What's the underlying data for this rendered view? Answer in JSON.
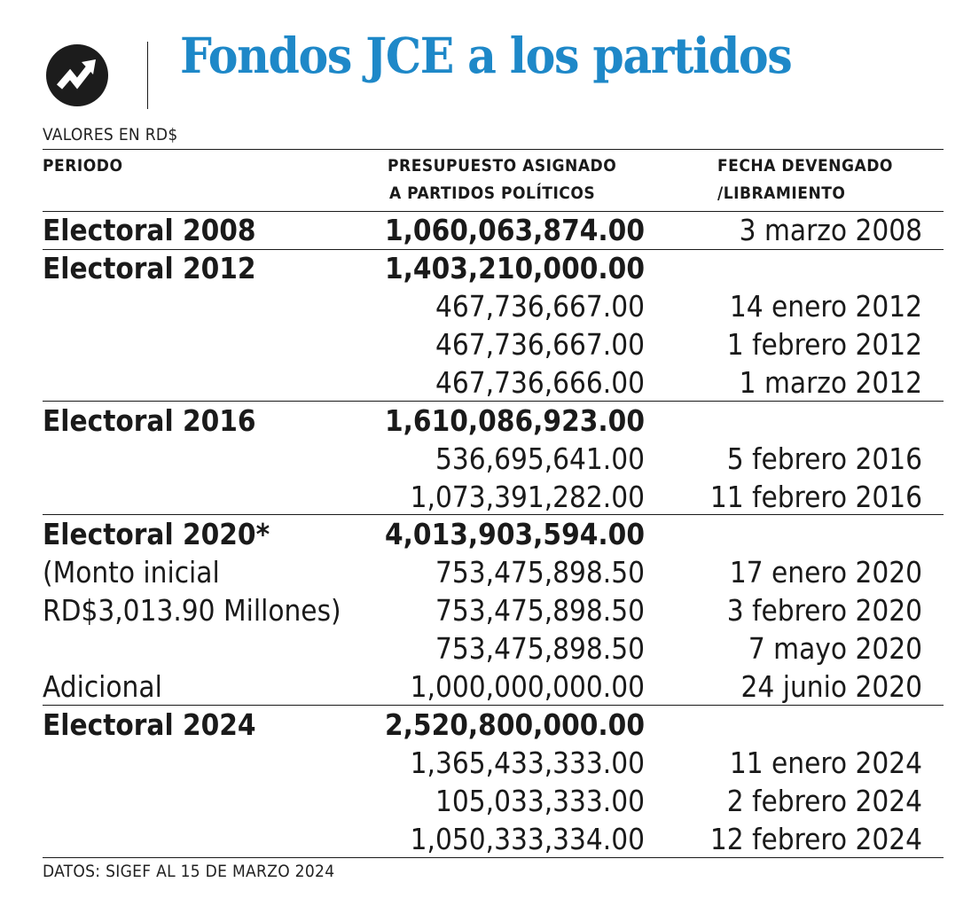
{
  "title": "Fondos JCE a los partidos",
  "subtitle": "VALORES EN RD$",
  "footer": "DATOS: SIGEF AL 15 DE MARZO 2024",
  "colors": {
    "title": "#1e88c8",
    "text": "#1a1a1a",
    "logo_bg": "#1c1c1c"
  },
  "logo_icon": "zigzag-arrow-icon",
  "headers": {
    "periodo": "PERIODO",
    "presupuesto_1": "PRESUPUESTO ASIGNADO",
    "presupuesto_2": "A PARTIDOS POLÍTICOS",
    "fecha_1": "FECHA DEVENGADO",
    "fecha_2": "/LIBRAMIENTO"
  },
  "rows": [
    {
      "periodo": "Electoral 2008",
      "monto": "1,060,063,874.00",
      "fecha": "3 marzo 2008",
      "bold": true
    },
    {
      "periodo": "Electoral 2012",
      "monto": "1,403,210,000.00",
      "fecha": "",
      "bold": true
    },
    {
      "periodo": "",
      "monto": "467,736,667.00",
      "fecha": "14 enero 2012",
      "bold": false
    },
    {
      "periodo": "",
      "monto": "467,736,667.00",
      "fecha": "1 febrero 2012",
      "bold": false
    },
    {
      "periodo": "",
      "monto": "467,736,666.00",
      "fecha": "1 marzo 2012",
      "bold": false
    },
    {
      "periodo": "Electoral 2016",
      "monto": "1,610,086,923.00",
      "fecha": "",
      "bold": true
    },
    {
      "periodo": "",
      "monto": "536,695,641.00",
      "fecha": "5 febrero 2016",
      "bold": false
    },
    {
      "periodo": "",
      "monto": "1,073,391,282.00",
      "fecha": "11 febrero 2016",
      "bold": false
    },
    {
      "periodo": "Electoral 2020*",
      "monto": "4,013,903,594.00",
      "fecha": "",
      "bold": true
    },
    {
      "periodo": "(Monto inicial",
      "monto": "753,475,898.50",
      "fecha": "17 enero 2020",
      "bold": false
    },
    {
      "periodo": "RD$3,013.90 Millones)",
      "monto": "753,475,898.50",
      "fecha": "3 febrero 2020",
      "bold": false
    },
    {
      "periodo": "",
      "monto": "753,475,898.50",
      "fecha": "7 mayo 2020",
      "bold": false
    },
    {
      "periodo": "Adicional",
      "monto": "1,000,000,000.00",
      "fecha": "24 junio 2020",
      "bold": false
    },
    {
      "periodo": "Electoral 2024",
      "monto": "2,520,800,000.00",
      "fecha": "",
      "bold": true
    },
    {
      "periodo": "",
      "monto": "1,365,433,333.00",
      "fecha": "11 enero 2024",
      "bold": false
    },
    {
      "periodo": "",
      "monto": "105,033,333.00",
      "fecha": "2 febrero 2024",
      "bold": false
    },
    {
      "periodo": "",
      "monto": "1,050,333,334.00",
      "fecha": "12 febrero 2024",
      "bold": false
    }
  ],
  "chart_data": {
    "type": "table",
    "title": "Fondos JCE a los partidos",
    "subtitle": "VALORES EN RD$",
    "columns": [
      "PERIODO",
      "PRESUPUESTO ASIGNADO A PARTIDOS POLÍTICOS",
      "FECHA DEVENGADO /LIBRAMIENTO"
    ],
    "groups": [
      {
        "periodo": "Electoral 2008",
        "total": 1060063874.0,
        "disbursements": [
          {
            "monto": 1060063874.0,
            "fecha": "3 marzo 2008"
          }
        ]
      },
      {
        "periodo": "Electoral 2012",
        "total": 1403210000.0,
        "disbursements": [
          {
            "monto": 467736667.0,
            "fecha": "14 enero 2012"
          },
          {
            "monto": 467736667.0,
            "fecha": "1 febrero 2012"
          },
          {
            "monto": 467736666.0,
            "fecha": "1 marzo 2012"
          }
        ]
      },
      {
        "periodo": "Electoral 2016",
        "total": 1610086923.0,
        "disbursements": [
          {
            "monto": 536695641.0,
            "fecha": "5 febrero 2016"
          },
          {
            "monto": 1073391282.0,
            "fecha": "11 febrero 2016"
          }
        ]
      },
      {
        "periodo": "Electoral 2020*",
        "note": "(Monto inicial RD$3,013.90 Millones)",
        "total": 4013903594.0,
        "disbursements": [
          {
            "monto": 753475898.5,
            "fecha": "17 enero 2020"
          },
          {
            "monto": 753475898.5,
            "fecha": "3 febrero 2020"
          },
          {
            "monto": 753475898.5,
            "fecha": "7 mayo 2020"
          },
          {
            "label": "Adicional",
            "monto": 1000000000.0,
            "fecha": "24 junio 2020"
          }
        ]
      },
      {
        "periodo": "Electoral 2024",
        "total": 2520800000.0,
        "disbursements": [
          {
            "monto": 1365433333.0,
            "fecha": "11 enero 2024"
          },
          {
            "monto": 105033333.0,
            "fecha": "2 febrero 2024"
          },
          {
            "monto": 1050333334.0,
            "fecha": "12 febrero 2024"
          }
        ]
      }
    ],
    "source": "DATOS: SIGEF AL 15 DE MARZO 2024"
  }
}
